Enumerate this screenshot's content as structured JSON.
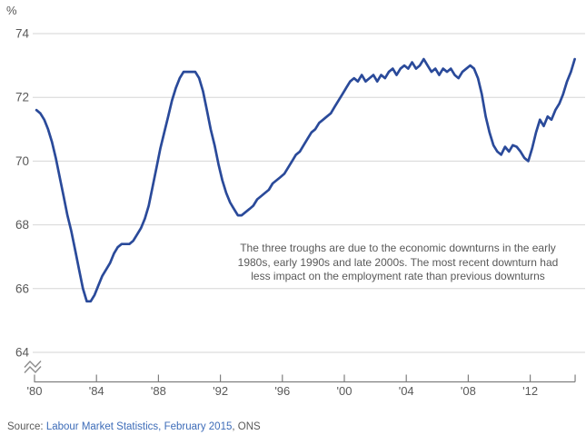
{
  "chart": {
    "unit_label": "%",
    "annotation_lines": [
      "The three troughs are due to the economic downturns in the early",
      "1980s, early 1990s and late 2000s. The most recent downturn had",
      "less impact on the employment rate than previous downturns"
    ],
    "source": {
      "prefix": "Source: ",
      "link": "Labour Market Statistics, February 2015",
      "suffix": ", ONS"
    },
    "colors": {
      "line": "#2a4a9a",
      "grid": "#d6d6d6",
      "axis": "#7f7f7f",
      "labels": "#595959",
      "link": "#3d6cb8",
      "break_mark": "#8c8c8c"
    }
  },
  "chart_data": {
    "type": "line",
    "title": "",
    "ylabel": "%",
    "xlabel": "",
    "ylim": [
      64,
      74
    ],
    "y_ticks": [
      74,
      72,
      70,
      68,
      66,
      64
    ],
    "y_tick_labels": [
      "74",
      "72",
      "70",
      "68",
      "66",
      "64"
    ],
    "x_tick_years": [
      1980,
      1984,
      1988,
      1992,
      1996,
      2000,
      2004,
      2008,
      2012
    ],
    "x_tick_labels": [
      "'80",
      "'84",
      "'88",
      "'92",
      "'96",
      "'00",
      "'04",
      "'08",
      "'12"
    ],
    "x_range": [
      1980,
      2014.9
    ],
    "axis_break": true,
    "grid": true,
    "legend_position": "none",
    "annotation": "The three troughs are due to the economic downturns in the early 1980s, early 1990s and late 2000s. The most recent downturn had less impact on the employment rate than previous downturns",
    "series": [
      {
        "name": "employment_rate_percent",
        "x_start": 1980.125,
        "x_step": 0.25,
        "values": [
          71.6,
          71.5,
          71.3,
          71.0,
          70.6,
          70.1,
          69.5,
          68.9,
          68.3,
          67.8,
          67.2,
          66.6,
          66.0,
          65.6,
          65.6,
          65.8,
          66.1,
          66.4,
          66.6,
          66.8,
          67.1,
          67.3,
          67.4,
          67.4,
          67.4,
          67.5,
          67.7,
          67.9,
          68.2,
          68.6,
          69.2,
          69.8,
          70.4,
          70.9,
          71.4,
          71.9,
          72.3,
          72.6,
          72.8,
          72.8,
          72.8,
          72.8,
          72.6,
          72.2,
          71.6,
          71.0,
          70.5,
          69.9,
          69.4,
          69.0,
          68.7,
          68.5,
          68.3,
          68.3,
          68.4,
          68.5,
          68.6,
          68.8,
          68.9,
          69.0,
          69.1,
          69.3,
          69.4,
          69.5,
          69.6,
          69.8,
          70.0,
          70.2,
          70.3,
          70.5,
          70.7,
          70.9,
          71.0,
          71.2,
          71.3,
          71.4,
          71.5,
          71.7,
          71.9,
          72.1,
          72.3,
          72.5,
          72.6,
          72.5,
          72.7,
          72.5,
          72.6,
          72.7,
          72.5,
          72.7,
          72.6,
          72.8,
          72.9,
          72.7,
          72.9,
          73.0,
          72.9,
          73.1,
          72.9,
          73.0,
          73.2,
          73.0,
          72.8,
          72.9,
          72.7,
          72.9,
          72.8,
          72.9,
          72.7,
          72.6,
          72.8,
          72.9,
          73.0,
          72.9,
          72.6,
          72.1,
          71.4,
          70.9,
          70.5,
          70.3,
          70.2,
          70.45,
          70.3,
          70.5,
          70.45,
          70.3,
          70.1,
          70.0,
          70.4,
          70.9,
          71.3,
          71.1,
          71.4,
          71.3,
          71.6,
          71.8,
          72.1,
          72.5,
          72.8,
          73.2
        ]
      }
    ]
  }
}
